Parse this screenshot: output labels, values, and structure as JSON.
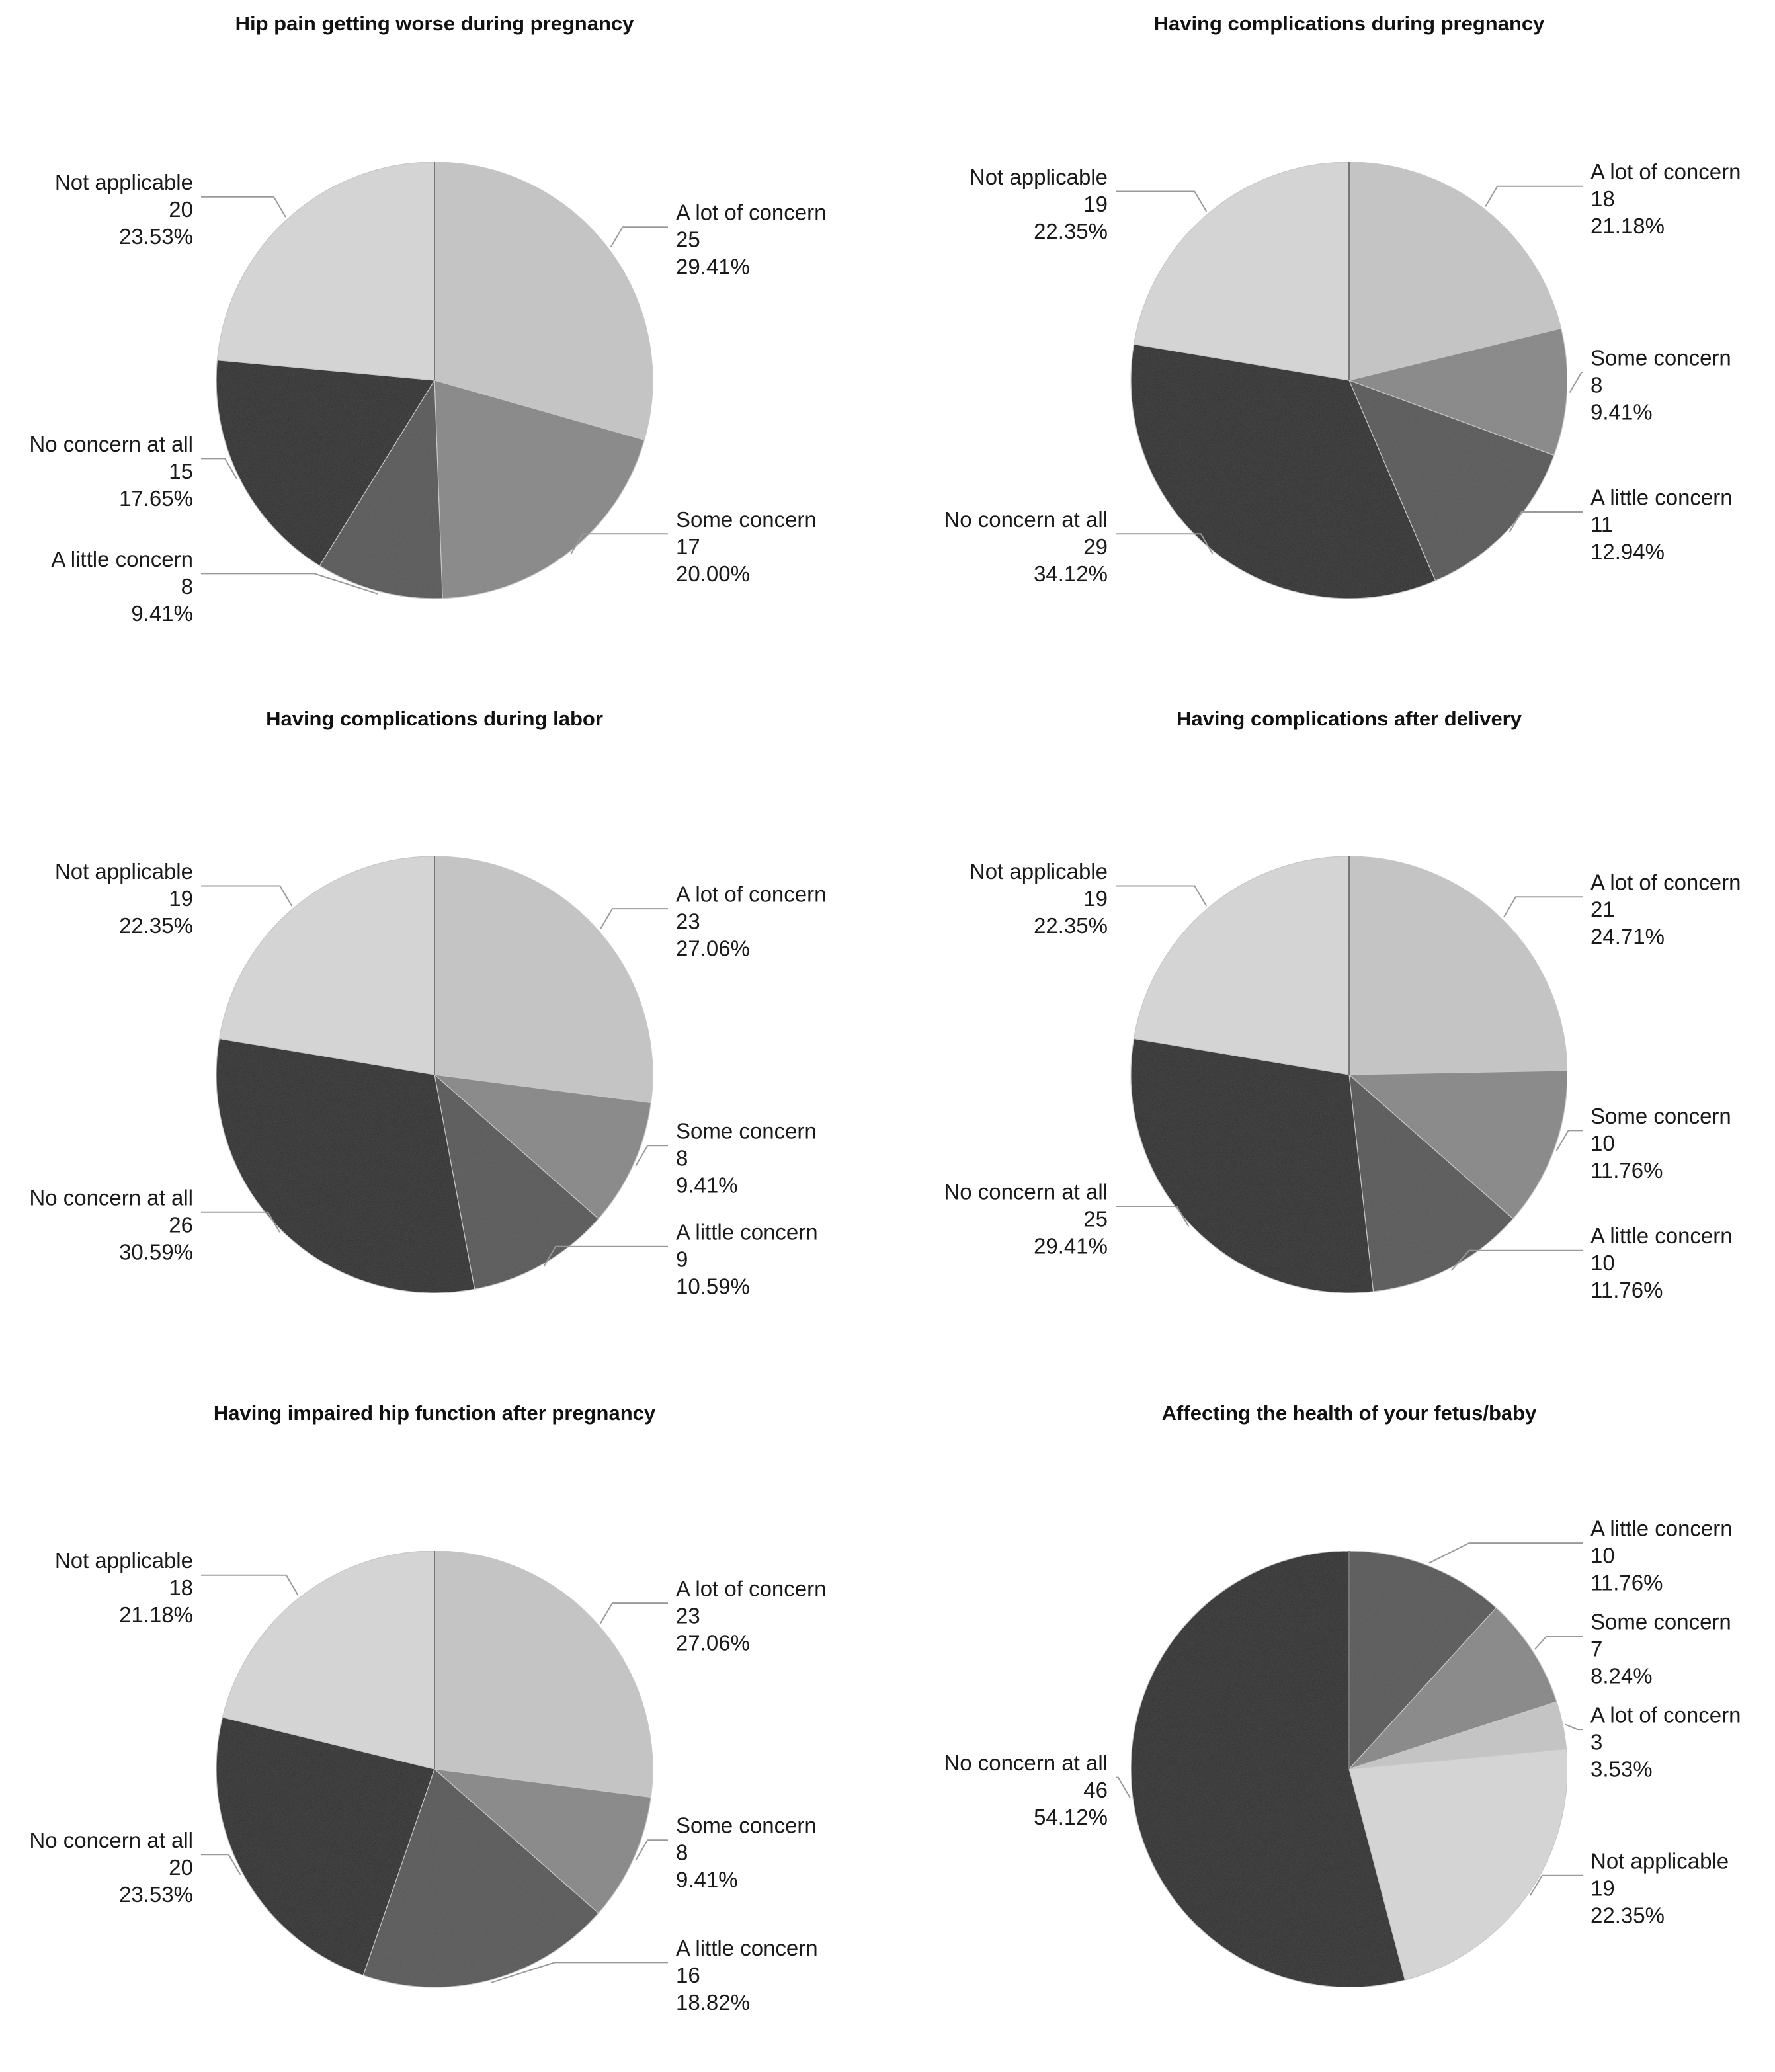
{
  "figure": {
    "legend_placement": "callout labels beside each slice",
    "colors": {
      "A lot of concern": "#c4c4c4",
      "Some concern": "#888888",
      "A little concern": "#595959",
      "No concern at all": "#2f2f2f",
      "Not applicable": "#d6d6d6"
    }
  },
  "chart_data": [
    {
      "type": "pie",
      "title": "Hip pain getting worse during pregnancy",
      "slices": [
        {
          "label": "A lot of concern",
          "count": "25",
          "percent": "29.41%",
          "value": 25
        },
        {
          "label": "Some concern",
          "count": "17",
          "percent": "20.00%",
          "value": 17
        },
        {
          "label": "A little concern",
          "count": "8",
          "percent": "9.41%",
          "value": 8
        },
        {
          "label": "No concern at all",
          "count": "15",
          "percent": "17.65%",
          "value": 15
        },
        {
          "label": "Not applicable",
          "count": "20",
          "percent": "23.53%",
          "value": 20
        }
      ]
    },
    {
      "type": "pie",
      "title": "Having complications during pregnancy",
      "slices": [
        {
          "label": "A lot of concern",
          "count": "18",
          "percent": "21.18%",
          "value": 18
        },
        {
          "label": "Some concern",
          "count": "8",
          "percent": "9.41%",
          "value": 8
        },
        {
          "label": "A little concern",
          "count": "11",
          "percent": "12.94%",
          "value": 11
        },
        {
          "label": "No concern at all",
          "count": "29",
          "percent": "34.12%",
          "value": 29
        },
        {
          "label": "Not applicable",
          "count": "19",
          "percent": "22.35%",
          "value": 19
        }
      ]
    },
    {
      "type": "pie",
      "title": "Having complications during labor",
      "slices": [
        {
          "label": "A lot of concern",
          "count": "23",
          "percent": "27.06%",
          "value": 23
        },
        {
          "label": "Some concern",
          "count": "8",
          "percent": "9.41%",
          "value": 8
        },
        {
          "label": "A little concern",
          "count": "9",
          "percent": "10.59%",
          "value": 9
        },
        {
          "label": "No concern at all",
          "count": "26",
          "percent": "30.59%",
          "value": 26
        },
        {
          "label": "Not applicable",
          "count": "19",
          "percent": "22.35%",
          "value": 19
        }
      ]
    },
    {
      "type": "pie",
      "title": "Having complications after delivery",
      "slices": [
        {
          "label": "A lot of concern",
          "count": "21",
          "percent": "24.71%",
          "value": 21
        },
        {
          "label": "Some concern",
          "count": "10",
          "percent": "11.76%",
          "value": 10
        },
        {
          "label": "A little concern",
          "count": "10",
          "percent": "11.76%",
          "value": 10
        },
        {
          "label": "No concern at all",
          "count": "25",
          "percent": "29.41%",
          "value": 25
        },
        {
          "label": "Not applicable",
          "count": "19",
          "percent": "22.35%",
          "value": 19
        }
      ]
    },
    {
      "type": "pie",
      "title": "Having impaired hip function after pregnancy",
      "slices": [
        {
          "label": "A lot of concern",
          "count": "23",
          "percent": "27.06%",
          "value": 23
        },
        {
          "label": "Some concern",
          "count": "8",
          "percent": "9.41%",
          "value": 8
        },
        {
          "label": "A little concern",
          "count": "16",
          "percent": "18.82%",
          "value": 16
        },
        {
          "label": "No concern at all",
          "count": "20",
          "percent": "23.53%",
          "value": 20
        },
        {
          "label": "Not applicable",
          "count": "18",
          "percent": "21.18%",
          "value": 18
        }
      ]
    },
    {
      "type": "pie",
      "title": "Affecting the health of your fetus/baby",
      "slices": [
        {
          "label": "A little concern",
          "count": "10",
          "percent": "11.76%",
          "value": 10
        },
        {
          "label": "Some concern",
          "count": "7",
          "percent": "8.24%",
          "value": 7
        },
        {
          "label": "A lot of concern",
          "count": "3",
          "percent": "3.53%",
          "value": 3
        },
        {
          "label": "Not applicable",
          "count": "19",
          "percent": "22.35%",
          "value": 19
        },
        {
          "label": "No concern at all",
          "count": "46",
          "percent": "54.12%",
          "value": 46
        }
      ]
    }
  ]
}
